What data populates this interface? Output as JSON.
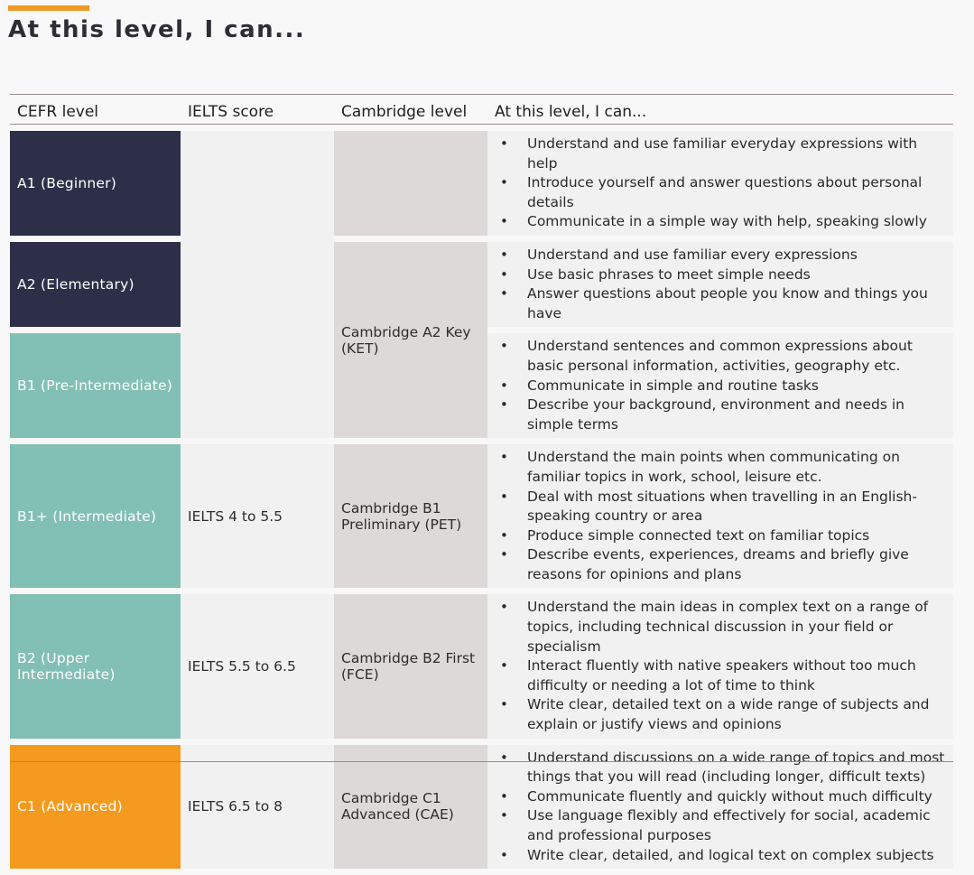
{
  "title": "At this level, I can...",
  "colors": {
    "accent": "#f09a24",
    "beginner": "#2d2f48",
    "intermediate": "#82bfb5",
    "advanced": "#f39a1f"
  },
  "headers": [
    "CEFR level",
    "IELTS score",
    "Cambridge level",
    "At this level, I can..."
  ],
  "rows": [
    {
      "level": "A1 (Beginner)",
      "ielts": "",
      "cambridge": "",
      "can": [
        "Understand and use familiar everyday expressions with help",
        "Introduce yourself and answer questions about personal details",
        "Communicate in a simple way with help, speaking slowly"
      ]
    },
    {
      "level": "A2 (Elementary)",
      "ielts": "",
      "cambridge": "Cambridge A2 Key (KET)",
      "can": [
        "Understand and use familiar every expressions",
        "Use basic phrases to meet simple needs",
        "Answer questions about people you know and things you have"
      ]
    },
    {
      "level": "B1 (Pre-Intermediate)",
      "ielts": "",
      "cambridge": "",
      "can": [
        "Understand sentences and common expressions about basic personal information, activities, geography etc.",
        "Communicate in simple and routine tasks",
        "Describe your background, environment and needs in simple terms"
      ]
    },
    {
      "level": "B1+ (Intermediate)",
      "ielts": "IELTS 4 to 5.5",
      "cambridge": "Cambridge B1 Preliminary (PET)",
      "can": [
        "Understand the main points when communicating on familiar topics in work, school, leisure etc.",
        "Deal with most situations when travelling in an English-speaking country or area",
        "Produce simple connected text on familiar topics",
        "Describe events, experiences, dreams and briefly give reasons for opinions and plans"
      ]
    },
    {
      "level": "B2 (Upper Intermediate)",
      "ielts": "IELTS 5.5 to 6.5",
      "cambridge": "Cambridge B2 First (FCE)",
      "can": [
        "Understand the main ideas in complex text on a range of topics, including technical discussion in your field or specialism",
        "Interact fluently with native speakers without too much difficulty or needing a lot of time to think",
        "Write clear, detailed text on a wide range of subjects and explain or justify views and opinions"
      ]
    },
    {
      "level": "C1 (Advanced)",
      "ielts": "IELTS 6.5 to 8",
      "cambridge": "Cambridge C1 Advanced (CAE)",
      "can": [
        "Understand discussions on a wide range of topics and most things that you will read (including longer, difficult texts)",
        "Communicate fluently and quickly without much difficulty",
        "Use language flexibly and effectively for social, academic and professional purposes",
        "Write clear, detailed, and logical text on complex subjects"
      ]
    }
  ]
}
